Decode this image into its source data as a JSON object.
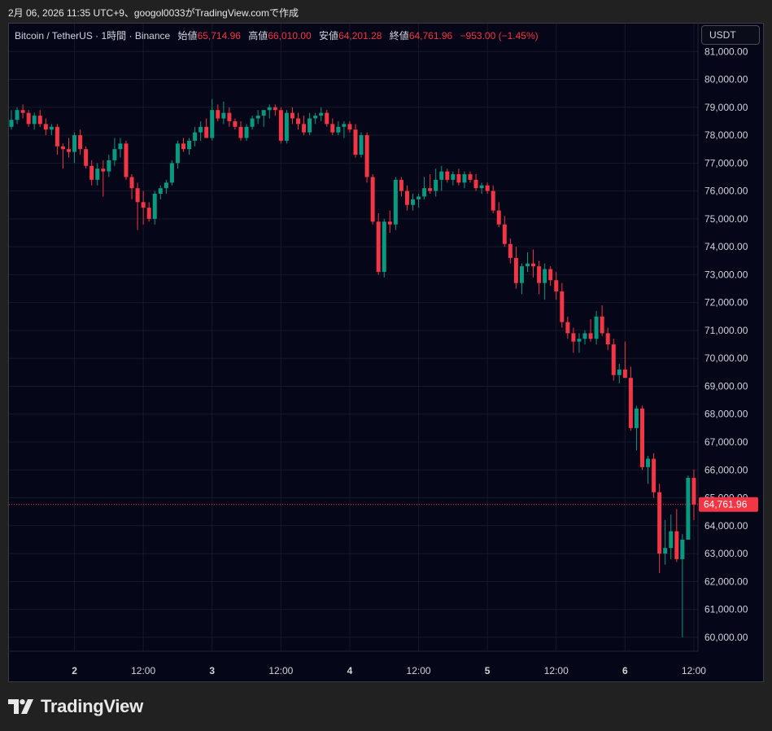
{
  "header": {
    "snapshot_text": "2月 06, 2026 11:35 UTC+9、googol0033がTradingView.comで作成"
  },
  "legend": {
    "symbol": "Bitcoin / TetherUS · 1時間 · Binance",
    "open_label": "始値",
    "open": "65,714.96",
    "high_label": "高値",
    "high": "66,010.00",
    "low_label": "安値",
    "low": "64,201.28",
    "close_label": "終値",
    "close": "64,761.96",
    "change": "−953.00 (−1.45%)"
  },
  "currency_button": "USDT",
  "brand": {
    "name": "TradingView",
    "logo_icon": "tradingview-logo-icon"
  },
  "colors": {
    "background": "#050617",
    "up": "#089981",
    "down": "#f23645",
    "grid": "#171a2b",
    "text": "#d1d4dc"
  },
  "chart_data": {
    "type": "candlestick",
    "title": "Bitcoin / TetherUS · 1時間 · Binance",
    "interval": "1時間",
    "ylim": [
      59500,
      82000
    ],
    "y_ticks": [
      60000,
      61000,
      62000,
      63000,
      64000,
      65000,
      66000,
      67000,
      68000,
      69000,
      70000,
      71000,
      72000,
      73000,
      74000,
      75000,
      76000,
      77000,
      78000,
      79000,
      80000,
      81000
    ],
    "x_tick_labels": [
      {
        "label": "2",
        "index": 11,
        "bold": true
      },
      {
        "label": "12:00",
        "index": 23
      },
      {
        "label": "3",
        "index": 35,
        "bold": true
      },
      {
        "label": "12:00",
        "index": 47
      },
      {
        "label": "4",
        "index": 59,
        "bold": true
      },
      {
        "label": "12:00",
        "index": 71
      },
      {
        "label": "5",
        "index": 83,
        "bold": true
      },
      {
        "label": "12:00",
        "index": 95
      },
      {
        "label": "6",
        "index": 107,
        "bold": true
      },
      {
        "label": "12:00",
        "index": 119
      }
    ],
    "last_price": 64761.96,
    "last_price_label": "64,761.96",
    "candles": [
      {
        "o": 78300,
        "h": 78900,
        "l": 78200,
        "c": 78550
      },
      {
        "o": 78550,
        "h": 79000,
        "l": 78400,
        "c": 78900
      },
      {
        "o": 78900,
        "h": 79100,
        "l": 78600,
        "c": 78800
      },
      {
        "o": 78800,
        "h": 78900,
        "l": 78300,
        "c": 78400
      },
      {
        "o": 78400,
        "h": 78800,
        "l": 78200,
        "c": 78700
      },
      {
        "o": 78700,
        "h": 78900,
        "l": 78300,
        "c": 78400
      },
      {
        "o": 78400,
        "h": 78600,
        "l": 78000,
        "c": 78200
      },
      {
        "o": 78200,
        "h": 78400,
        "l": 78000,
        "c": 78300
      },
      {
        "o": 78300,
        "h": 78400,
        "l": 77300,
        "c": 77600
      },
      {
        "o": 77600,
        "h": 77700,
        "l": 76800,
        "c": 77500
      },
      {
        "o": 77500,
        "h": 77900,
        "l": 77200,
        "c": 77400
      },
      {
        "o": 77400,
        "h": 78100,
        "l": 77000,
        "c": 78000
      },
      {
        "o": 78000,
        "h": 78200,
        "l": 77300,
        "c": 77500
      },
      {
        "o": 77500,
        "h": 77600,
        "l": 76800,
        "c": 76900
      },
      {
        "o": 76900,
        "h": 77100,
        "l": 76200,
        "c": 76400
      },
      {
        "o": 76400,
        "h": 77000,
        "l": 76200,
        "c": 76800
      },
      {
        "o": 76800,
        "h": 77100,
        "l": 75800,
        "c": 76700
      },
      {
        "o": 76700,
        "h": 77300,
        "l": 76500,
        "c": 77100
      },
      {
        "o": 77100,
        "h": 77900,
        "l": 76900,
        "c": 77500
      },
      {
        "o": 77500,
        "h": 77900,
        "l": 77200,
        "c": 77700
      },
      {
        "o": 77700,
        "h": 77800,
        "l": 76400,
        "c": 76500
      },
      {
        "o": 76500,
        "h": 76600,
        "l": 75700,
        "c": 76100
      },
      {
        "o": 76100,
        "h": 76300,
        "l": 74600,
        "c": 75600
      },
      {
        "o": 75600,
        "h": 76000,
        "l": 74800,
        "c": 75400
      },
      {
        "o": 75400,
        "h": 75600,
        "l": 74900,
        "c": 75000
      },
      {
        "o": 75000,
        "h": 76000,
        "l": 74800,
        "c": 75900
      },
      {
        "o": 75900,
        "h": 76200,
        "l": 75700,
        "c": 76100
      },
      {
        "o": 76100,
        "h": 76400,
        "l": 75900,
        "c": 76300
      },
      {
        "o": 76300,
        "h": 77100,
        "l": 76200,
        "c": 77000
      },
      {
        "o": 77000,
        "h": 77800,
        "l": 76800,
        "c": 77700
      },
      {
        "o": 77700,
        "h": 77900,
        "l": 77400,
        "c": 77500
      },
      {
        "o": 77500,
        "h": 77900,
        "l": 77300,
        "c": 77800
      },
      {
        "o": 77800,
        "h": 78300,
        "l": 77600,
        "c": 78100
      },
      {
        "o": 78100,
        "h": 78500,
        "l": 77800,
        "c": 78300
      },
      {
        "o": 78300,
        "h": 78600,
        "l": 77900,
        "c": 77900
      },
      {
        "o": 77900,
        "h": 79300,
        "l": 77800,
        "c": 78900
      },
      {
        "o": 78900,
        "h": 79100,
        "l": 78500,
        "c": 78600
      },
      {
        "o": 78600,
        "h": 79200,
        "l": 78400,
        "c": 78800
      },
      {
        "o": 78800,
        "h": 79000,
        "l": 78300,
        "c": 78500
      },
      {
        "o": 78500,
        "h": 78600,
        "l": 78200,
        "c": 78300
      },
      {
        "o": 78300,
        "h": 78500,
        "l": 77800,
        "c": 77900
      },
      {
        "o": 77900,
        "h": 78400,
        "l": 77800,
        "c": 78300
      },
      {
        "o": 78300,
        "h": 78700,
        "l": 78200,
        "c": 78600
      },
      {
        "o": 78600,
        "h": 78900,
        "l": 78400,
        "c": 78700
      },
      {
        "o": 78700,
        "h": 78900,
        "l": 78300,
        "c": 78900
      },
      {
        "o": 78900,
        "h": 79100,
        "l": 78600,
        "c": 79000
      },
      {
        "o": 79000,
        "h": 79100,
        "l": 78700,
        "c": 78900
      },
      {
        "o": 78900,
        "h": 79000,
        "l": 77700,
        "c": 77800
      },
      {
        "o": 77800,
        "h": 78900,
        "l": 77700,
        "c": 78800
      },
      {
        "o": 78800,
        "h": 79000,
        "l": 78400,
        "c": 78600
      },
      {
        "o": 78600,
        "h": 78800,
        "l": 78200,
        "c": 78400
      },
      {
        "o": 78400,
        "h": 78700,
        "l": 78000,
        "c": 78100
      },
      {
        "o": 78100,
        "h": 78800,
        "l": 78000,
        "c": 78600
      },
      {
        "o": 78600,
        "h": 78800,
        "l": 78400,
        "c": 78700
      },
      {
        "o": 78700,
        "h": 79000,
        "l": 78500,
        "c": 78800
      },
      {
        "o": 78800,
        "h": 78900,
        "l": 78300,
        "c": 78400
      },
      {
        "o": 78400,
        "h": 78600,
        "l": 78000,
        "c": 78100
      },
      {
        "o": 78100,
        "h": 78500,
        "l": 78000,
        "c": 78300
      },
      {
        "o": 78300,
        "h": 78500,
        "l": 77900,
        "c": 78400
      },
      {
        "o": 78400,
        "h": 78500,
        "l": 78100,
        "c": 78200
      },
      {
        "o": 78200,
        "h": 78400,
        "l": 77200,
        "c": 77300
      },
      {
        "o": 77300,
        "h": 78100,
        "l": 77200,
        "c": 78000
      },
      {
        "o": 78000,
        "h": 78100,
        "l": 76300,
        "c": 76500
      },
      {
        "o": 76500,
        "h": 76600,
        "l": 74800,
        "c": 74900
      },
      {
        "o": 74900,
        "h": 75200,
        "l": 73000,
        "c": 73100
      },
      {
        "o": 73100,
        "h": 75000,
        "l": 72900,
        "c": 74900
      },
      {
        "o": 74900,
        "h": 75300,
        "l": 74500,
        "c": 74800
      },
      {
        "o": 74800,
        "h": 76500,
        "l": 74600,
        "c": 76400
      },
      {
        "o": 76400,
        "h": 76500,
        "l": 75800,
        "c": 76000
      },
      {
        "o": 76000,
        "h": 76200,
        "l": 75300,
        "c": 75500
      },
      {
        "o": 75500,
        "h": 75900,
        "l": 75300,
        "c": 75700
      },
      {
        "o": 75700,
        "h": 75900,
        "l": 75400,
        "c": 75800
      },
      {
        "o": 75800,
        "h": 76500,
        "l": 75700,
        "c": 76100
      },
      {
        "o": 76100,
        "h": 76600,
        "l": 75900,
        "c": 76000
      },
      {
        "o": 76000,
        "h": 76800,
        "l": 75800,
        "c": 76400
      },
      {
        "o": 76400,
        "h": 76900,
        "l": 76000,
        "c": 76700
      },
      {
        "o": 76700,
        "h": 76800,
        "l": 76300,
        "c": 76400
      },
      {
        "o": 76400,
        "h": 76700,
        "l": 76200,
        "c": 76600
      },
      {
        "o": 76600,
        "h": 76800,
        "l": 76200,
        "c": 76300
      },
      {
        "o": 76300,
        "h": 76700,
        "l": 76100,
        "c": 76600
      },
      {
        "o": 76600,
        "h": 76700,
        "l": 76300,
        "c": 76400
      },
      {
        "o": 76400,
        "h": 76600,
        "l": 76000,
        "c": 76100
      },
      {
        "o": 76100,
        "h": 76300,
        "l": 75900,
        "c": 76200
      },
      {
        "o": 76200,
        "h": 76300,
        "l": 75900,
        "c": 76000
      },
      {
        "o": 76000,
        "h": 76200,
        "l": 75200,
        "c": 75300
      },
      {
        "o": 75300,
        "h": 75600,
        "l": 74700,
        "c": 74800
      },
      {
        "o": 74800,
        "h": 75100,
        "l": 74000,
        "c": 74100
      },
      {
        "o": 74100,
        "h": 74300,
        "l": 73400,
        "c": 73600
      },
      {
        "o": 73600,
        "h": 74000,
        "l": 72500,
        "c": 72700
      },
      {
        "o": 72700,
        "h": 73400,
        "l": 72300,
        "c": 73300
      },
      {
        "o": 73300,
        "h": 73800,
        "l": 73100,
        "c": 73400
      },
      {
        "o": 73400,
        "h": 73900,
        "l": 72900,
        "c": 73300
      },
      {
        "o": 73300,
        "h": 73500,
        "l": 72300,
        "c": 72700
      },
      {
        "o": 72700,
        "h": 73400,
        "l": 72100,
        "c": 73200
      },
      {
        "o": 73200,
        "h": 73300,
        "l": 72600,
        "c": 72800
      },
      {
        "o": 72800,
        "h": 73100,
        "l": 72100,
        "c": 72400
      },
      {
        "o": 72400,
        "h": 72700,
        "l": 71100,
        "c": 71300
      },
      {
        "o": 71300,
        "h": 71500,
        "l": 70700,
        "c": 70900
      },
      {
        "o": 70900,
        "h": 71100,
        "l": 70200,
        "c": 70600
      },
      {
        "o": 70600,
        "h": 70900,
        "l": 70200,
        "c": 70700
      },
      {
        "o": 70700,
        "h": 71000,
        "l": 70500,
        "c": 70900
      },
      {
        "o": 70900,
        "h": 71400,
        "l": 70600,
        "c": 70700
      },
      {
        "o": 70700,
        "h": 71700,
        "l": 70500,
        "c": 71500
      },
      {
        "o": 71500,
        "h": 71900,
        "l": 70800,
        "c": 70900
      },
      {
        "o": 70900,
        "h": 71100,
        "l": 70300,
        "c": 70500
      },
      {
        "o": 70500,
        "h": 70700,
        "l": 69200,
        "c": 69400
      },
      {
        "o": 69400,
        "h": 69800,
        "l": 69100,
        "c": 69600
      },
      {
        "o": 69600,
        "h": 70600,
        "l": 69300,
        "c": 69300
      },
      {
        "o": 69300,
        "h": 69700,
        "l": 67400,
        "c": 67500
      },
      {
        "o": 67500,
        "h": 68300,
        "l": 66700,
        "c": 68200
      },
      {
        "o": 68200,
        "h": 68300,
        "l": 66000,
        "c": 66100
      },
      {
        "o": 66100,
        "h": 66500,
        "l": 65500,
        "c": 66400
      },
      {
        "o": 66400,
        "h": 66600,
        "l": 65000,
        "c": 65200
      },
      {
        "o": 65200,
        "h": 65500,
        "l": 62300,
        "c": 63000
      },
      {
        "o": 63000,
        "h": 64200,
        "l": 62600,
        "c": 63200
      },
      {
        "o": 63200,
        "h": 64400,
        "l": 62800,
        "c": 63800
      },
      {
        "o": 63800,
        "h": 64600,
        "l": 62700,
        "c": 62800
      },
      {
        "o": 62800,
        "h": 63700,
        "l": 60000,
        "c": 63500
      },
      {
        "o": 63500,
        "h": 65800,
        "l": 63500,
        "c": 65714.96
      },
      {
        "o": 65714.96,
        "h": 66010,
        "l": 64201.28,
        "c": 64761.96
      }
    ]
  }
}
